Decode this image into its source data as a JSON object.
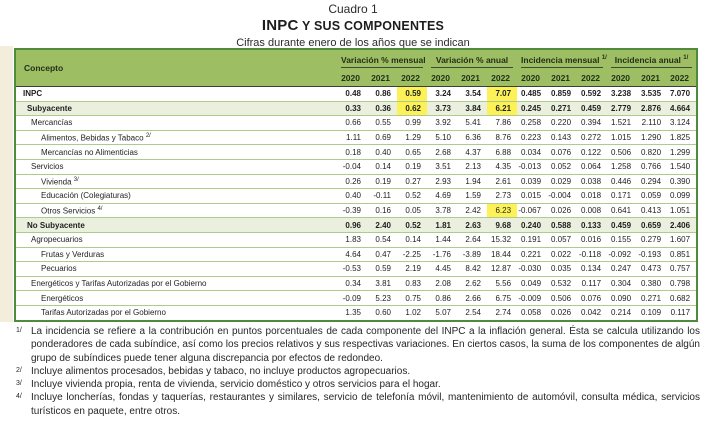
{
  "page": {
    "kicker": "Cuadro 1",
    "title_strong": "INPC",
    "title_rest": " Y SUS COMPONENTES",
    "subtitle": "Cifras durante enero de los años que se indican"
  },
  "colors": {
    "header_green": "#9DBE62",
    "shaded_row": "#EAEFDE",
    "row_line": "#AECB8C",
    "outer_border": "#4F8A3D",
    "highlight_yellow": "#FCF257"
  },
  "table": {
    "concept_header": "Concepto",
    "groups": [
      {
        "label": "Variación % mensual",
        "sup": ""
      },
      {
        "label": "Variación % anual",
        "sup": ""
      },
      {
        "label": "Incidencia mensual ",
        "sup": "1/"
      },
      {
        "label": "Incidencia anual ",
        "sup": "1/"
      }
    ],
    "years": [
      "2020",
      "2021",
      "2022"
    ],
    "rows": [
      {
        "concept": "INPC",
        "sup": "",
        "level": 0,
        "bold": true,
        "shaded": false,
        "values": [
          "0.48",
          "0.86",
          "0.59",
          "3.24",
          "3.54",
          "7.07",
          "0.485",
          "0.859",
          "0.592",
          "3.238",
          "3.535",
          "7.070"
        ],
        "highlight": [
          2,
          5
        ]
      },
      {
        "concept": "Subyacente",
        "sup": "",
        "level": 1,
        "bold": true,
        "shaded": true,
        "values": [
          "0.33",
          "0.36",
          "0.62",
          "3.73",
          "3.84",
          "6.21",
          "0.245",
          "0.271",
          "0.459",
          "2.779",
          "2.876",
          "4.664"
        ],
        "highlight": [
          2,
          5
        ]
      },
      {
        "concept": "Mercancías",
        "sup": "",
        "level": 2,
        "bold": false,
        "shaded": false,
        "values": [
          "0.66",
          "0.55",
          "0.99",
          "3.92",
          "5.41",
          "7.86",
          "0.258",
          "0.220",
          "0.394",
          "1.521",
          "2.110",
          "3.124"
        ],
        "highlight": []
      },
      {
        "concept": "Alimentos, Bebidas y Tabaco ",
        "sup": "2/",
        "level": 3,
        "bold": false,
        "shaded": false,
        "values": [
          "1.11",
          "0.69",
          "1.29",
          "5.10",
          "6.36",
          "8.76",
          "0.223",
          "0.143",
          "0.272",
          "1.015",
          "1.290",
          "1.825"
        ],
        "highlight": []
      },
      {
        "concept": "Mercancías no Alimenticias",
        "sup": "",
        "level": 3,
        "bold": false,
        "shaded": false,
        "values": [
          "0.18",
          "0.40",
          "0.65",
          "2.68",
          "4.37",
          "6.88",
          "0.034",
          "0.076",
          "0.122",
          "0.506",
          "0.820",
          "1.299"
        ],
        "highlight": []
      },
      {
        "concept": "Servicios",
        "sup": "",
        "level": 2,
        "bold": false,
        "shaded": false,
        "values": [
          "-0.04",
          "0.14",
          "0.19",
          "3.51",
          "2.13",
          "4.35",
          "-0.013",
          "0.052",
          "0.064",
          "1.258",
          "0.766",
          "1.540"
        ],
        "highlight": []
      },
      {
        "concept": "Vivienda ",
        "sup": "3/",
        "level": 3,
        "bold": false,
        "shaded": false,
        "values": [
          "0.26",
          "0.19",
          "0.27",
          "2.93",
          "1.94",
          "2.61",
          "0.039",
          "0.029",
          "0.038",
          "0.446",
          "0.294",
          "0.390"
        ],
        "highlight": []
      },
      {
        "concept": "Educación (Colegiaturas)",
        "sup": "",
        "level": 3,
        "bold": false,
        "shaded": false,
        "values": [
          "0.40",
          "-0.11",
          "0.52",
          "4.69",
          "1.59",
          "2.73",
          "0.015",
          "-0.004",
          "0.018",
          "0.171",
          "0.059",
          "0.099"
        ],
        "highlight": []
      },
      {
        "concept": "Otros Servicios ",
        "sup": "4/",
        "level": 3,
        "bold": false,
        "shaded": false,
        "values": [
          "-0.39",
          "0.16",
          "0.05",
          "3.78",
          "2.42",
          "6.23",
          "-0.067",
          "0.026",
          "0.008",
          "0.641",
          "0.413",
          "1.051"
        ],
        "highlight": [
          5
        ]
      },
      {
        "concept": "No Subyacente",
        "sup": "",
        "level": 1,
        "bold": true,
        "shaded": true,
        "values": [
          "0.96",
          "2.40",
          "0.52",
          "1.81",
          "2.63",
          "9.68",
          "0.240",
          "0.588",
          "0.133",
          "0.459",
          "0.659",
          "2.406"
        ],
        "highlight": []
      },
      {
        "concept": "Agropecuarios",
        "sup": "",
        "level": 2,
        "bold": false,
        "shaded": false,
        "values": [
          "1.83",
          "0.54",
          "0.14",
          "1.44",
          "2.64",
          "15.32",
          "0.191",
          "0.057",
          "0.016",
          "0.155",
          "0.279",
          "1.607"
        ],
        "highlight": []
      },
      {
        "concept": "Frutas y Verduras",
        "sup": "",
        "level": 3,
        "bold": false,
        "shaded": false,
        "values": [
          "4.64",
          "0.47",
          "-2.25",
          "-1.76",
          "-3.89",
          "18.44",
          "0.221",
          "0.022",
          "-0.118",
          "-0.092",
          "-0.193",
          "0.851"
        ],
        "highlight": []
      },
      {
        "concept": "Pecuarios",
        "sup": "",
        "level": 3,
        "bold": false,
        "shaded": false,
        "values": [
          "-0.53",
          "0.59",
          "2.19",
          "4.45",
          "8.42",
          "12.87",
          "-0.030",
          "0.035",
          "0.134",
          "0.247",
          "0.473",
          "0.757"
        ],
        "highlight": []
      },
      {
        "concept": "Energéticos y Tarifas Autorizadas por el Gobierno",
        "sup": "",
        "level": 2,
        "bold": false,
        "shaded": false,
        "values": [
          "0.34",
          "3.81",
          "0.83",
          "2.08",
          "2.62",
          "5.56",
          "0.049",
          "0.532",
          "0.117",
          "0.304",
          "0.380",
          "0.798"
        ],
        "highlight": []
      },
      {
        "concept": "Energéticos",
        "sup": "",
        "level": 3,
        "bold": false,
        "shaded": false,
        "values": [
          "-0.09",
          "5.23",
          "0.75",
          "0.86",
          "2.66",
          "6.75",
          "-0.009",
          "0.506",
          "0.076",
          "0.090",
          "0.271",
          "0.682"
        ],
        "highlight": []
      },
      {
        "concept": "Tarifas Autorizadas por el Gobierno",
        "sup": "",
        "level": 3,
        "bold": false,
        "shaded": false,
        "values": [
          "1.35",
          "0.60",
          "1.02",
          "5.07",
          "2.54",
          "2.74",
          "0.058",
          "0.026",
          "0.042",
          "0.214",
          "0.109",
          "0.117"
        ],
        "highlight": []
      }
    ]
  },
  "footnotes": [
    {
      "marker": "1/",
      "text": "La incidencia se refiere a la contribución en puntos porcentuales de cada componente del INPC a la inflación general. Ésta se calcula utilizando los ponderadores de cada subíndice, así como los precios relativos y sus respectivas variaciones. En ciertos casos, la suma de los componentes de algún grupo de subíndices puede tener alguna discrepancia por efectos de redondeo."
    },
    {
      "marker": "2/",
      "text": "Incluye alimentos procesados, bebidas y tabaco, no incluye productos agropecuarios."
    },
    {
      "marker": "3/",
      "text": "Incluye vivienda propia, renta de vivienda, servicio doméstico y otros servicios para el hogar."
    },
    {
      "marker": "4/",
      "text": "Incluye loncherías, fondas y taquerías, restaurantes y similares, servicio de telefonía móvil, mantenimiento de automóvil, consulta médica, servicios turísticos en paquete, entre otros."
    }
  ]
}
